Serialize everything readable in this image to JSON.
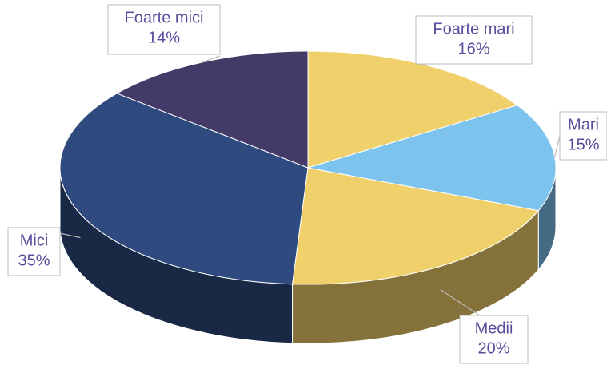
{
  "chart_data": {
    "type": "pie",
    "categories": [
      "Foarte mari",
      "Mari",
      "Medii",
      "Mici",
      "Foarte mici"
    ],
    "values": [
      16,
      15,
      20,
      35,
      14
    ],
    "value_labels": [
      "16%",
      "15%",
      "20%",
      "35%",
      "14%"
    ],
    "colors": [
      "#f0d06a",
      "#7cc3ee",
      "#f0d06a",
      "#2e4a7e",
      "#433a68"
    ]
  }
}
